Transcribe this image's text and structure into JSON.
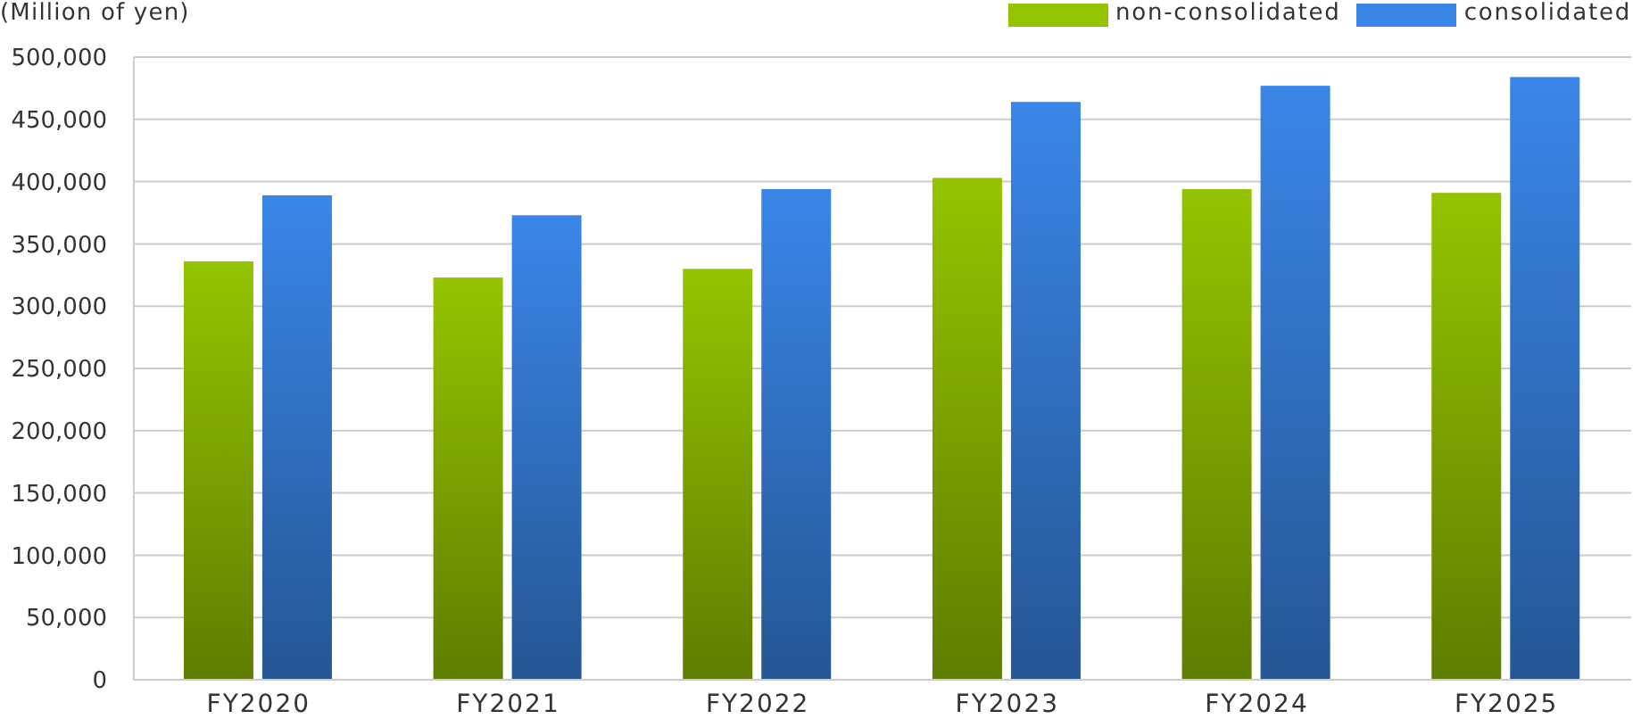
{
  "chart_data": {
    "type": "bar",
    "ylabel": "(Million of yen)",
    "categories": [
      "FY2020",
      "FY2021",
      "FY2022",
      "FY2023",
      "FY2024",
      "FY2025"
    ],
    "series": [
      {
        "name": "non-consolidated",
        "color": "#94c400",
        "values": [
          336000,
          323000,
          330000,
          403000,
          394000,
          391000
        ]
      },
      {
        "name": "consolidated",
        "color": "#3a86e8",
        "values": [
          389000,
          373000,
          394000,
          464000,
          477000,
          484000
        ]
      }
    ],
    "ylim": [
      0,
      500000
    ],
    "yticks": [
      {
        "value": 0,
        "label": "0"
      },
      {
        "value": 50000,
        "label": "50,000"
      },
      {
        "value": 100000,
        "label": "100,000"
      },
      {
        "value": 150000,
        "label": "150,000"
      },
      {
        "value": 200000,
        "label": "200,000"
      },
      {
        "value": 250000,
        "label": "250,000"
      },
      {
        "value": 300000,
        "label": "300,000"
      },
      {
        "value": 350000,
        "label": "350,000"
      },
      {
        "value": 400000,
        "label": "400,000"
      },
      {
        "value": 450000,
        "label": "450,000"
      },
      {
        "value": 500000,
        "label": "500,000"
      }
    ],
    "grid": "y",
    "legend": "top right"
  }
}
